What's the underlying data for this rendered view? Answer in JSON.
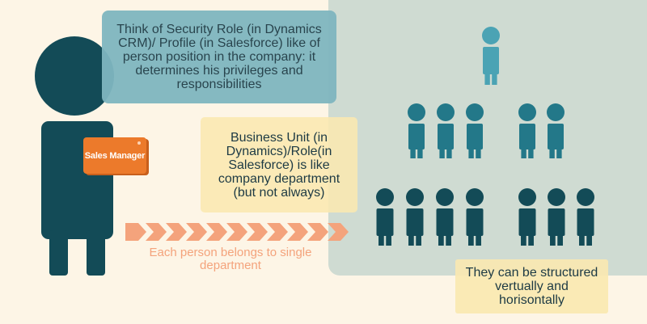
{
  "colors": {
    "background": "#fdf5e6",
    "panel": "#cfdbd2",
    "dark_teal": "#134b57",
    "mid_teal": "#237889",
    "light_teal": "#4ba3b4",
    "orange": "#ec7a2b",
    "salmon": "#f4a37c",
    "yellow_note": "#fae8b1",
    "blue_note": "#7fb6c0"
  },
  "security_role_note": "Think of Security Role (in Dynamics CRM)/ Profile (in Salesforce) like of person position in the company: it determines his privileges and responsibilities",
  "badge_label": "Sales Manager",
  "business_unit_note": "Business Unit (in Dynamics)/Role(in Salesforce) is like company department (but not always)",
  "arrow_caption": "Each person belongs to single department",
  "structure_note": "They can be structured vertually and horisontally",
  "hierarchy": {
    "top_level_count": 1,
    "middle_groups": [
      3,
      2
    ],
    "bottom_groups": [
      4,
      3
    ]
  }
}
